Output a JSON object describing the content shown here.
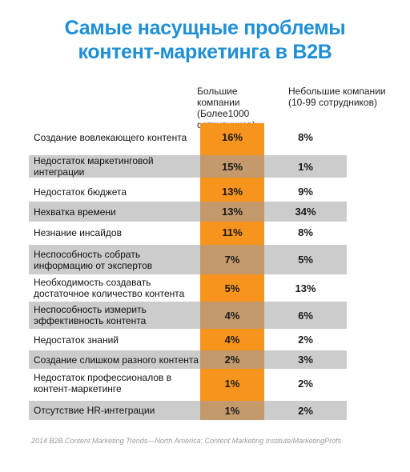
{
  "title_line1": "Самые насущные проблемы",
  "title_line2": "контент-маркетинга  в B2B",
  "headers": {
    "large": "Большие компании (Более1000 сотрудников)",
    "small": "Небольшие компании (10-99 сотрудников)"
  },
  "source": "2014 B2B Content Marketing Trends—North America: Content Marketing Institute/MarketingProfs",
  "colors": {
    "title": "#1f8fd6",
    "orange": "#f7941d",
    "shade_gray": "#cccccc",
    "shade_tan": "#c49a6c"
  },
  "chart_data": {
    "type": "table",
    "title": "Самые насущные проблемы контент-маркетинга  в B2B",
    "columns": [
      "Большие компании (Более1000 сотрудников)",
      "Небольшие компании (10-99 сотрудников)"
    ],
    "rows": [
      {
        "label": "Создание вовлекающего контента",
        "large": "16%",
        "small": "8%"
      },
      {
        "label": "Недостаток маркетинговой интеграции",
        "large": "15%",
        "small": "1%"
      },
      {
        "label": "Недостаток бюджета",
        "large": "13%",
        "small": "9%"
      },
      {
        "label": "Нехватка времени",
        "large": "13%",
        "small": "34%"
      },
      {
        "label": "Незнание  инсайдов",
        "large": "11%",
        "small": "8%"
      },
      {
        "label": "Неспособность собрать информацию от экспертов",
        "large": "7%",
        "small": "5%"
      },
      {
        "label": "Необходимость создавать достаточное количество контента",
        "large": "5%",
        "small": "13%"
      },
      {
        "label": "Неспособность измерить эффективность контента",
        "large": "4%",
        "small": "6%"
      },
      {
        "label": "Недостаток знаний",
        "large": "4%",
        "small": "2%"
      },
      {
        "label": "Создание слишком разного контента",
        "large": "2%",
        "small": "3%"
      },
      {
        "label": "Недостаток профессионалов в контент-маркетинге",
        "large": "1%",
        "small": "2%"
      },
      {
        "label": "Отсутствие HR-интеграции",
        "large": "1%",
        "small": "2%"
      }
    ]
  }
}
